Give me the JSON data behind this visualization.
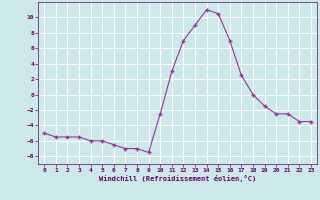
{
  "x": [
    0,
    1,
    2,
    3,
    4,
    5,
    6,
    7,
    8,
    9,
    10,
    11,
    12,
    13,
    14,
    15,
    16,
    17,
    18,
    19,
    20,
    21,
    22,
    23
  ],
  "y": [
    -5,
    -5.5,
    -5.5,
    -5.5,
    -6,
    -6,
    -6.5,
    -7,
    -7,
    -7.5,
    -2.5,
    3,
    7,
    9,
    11,
    10.5,
    7,
    2.5,
    0,
    -1.5,
    -2.5,
    -2.5,
    -3.5,
    -3.5
  ],
  "line_color": "#993399",
  "marker_color": "#993399",
  "bg_color": "#cce8e8",
  "grid_color": "#b0d0d0",
  "xlabel": "Windchill (Refroidissement éolien,°C)",
  "xlim": [
    -0.5,
    23.5
  ],
  "ylim": [
    -9,
    12
  ],
  "yticks": [
    -8,
    -6,
    -4,
    -2,
    0,
    2,
    4,
    6,
    8,
    10
  ],
  "xticks": [
    0,
    1,
    2,
    3,
    4,
    5,
    6,
    7,
    8,
    9,
    10,
    11,
    12,
    13,
    14,
    15,
    16,
    17,
    18,
    19,
    20,
    21,
    22,
    23
  ],
  "xlabel_color": "#660066",
  "tick_color": "#660066",
  "font": "monospace"
}
